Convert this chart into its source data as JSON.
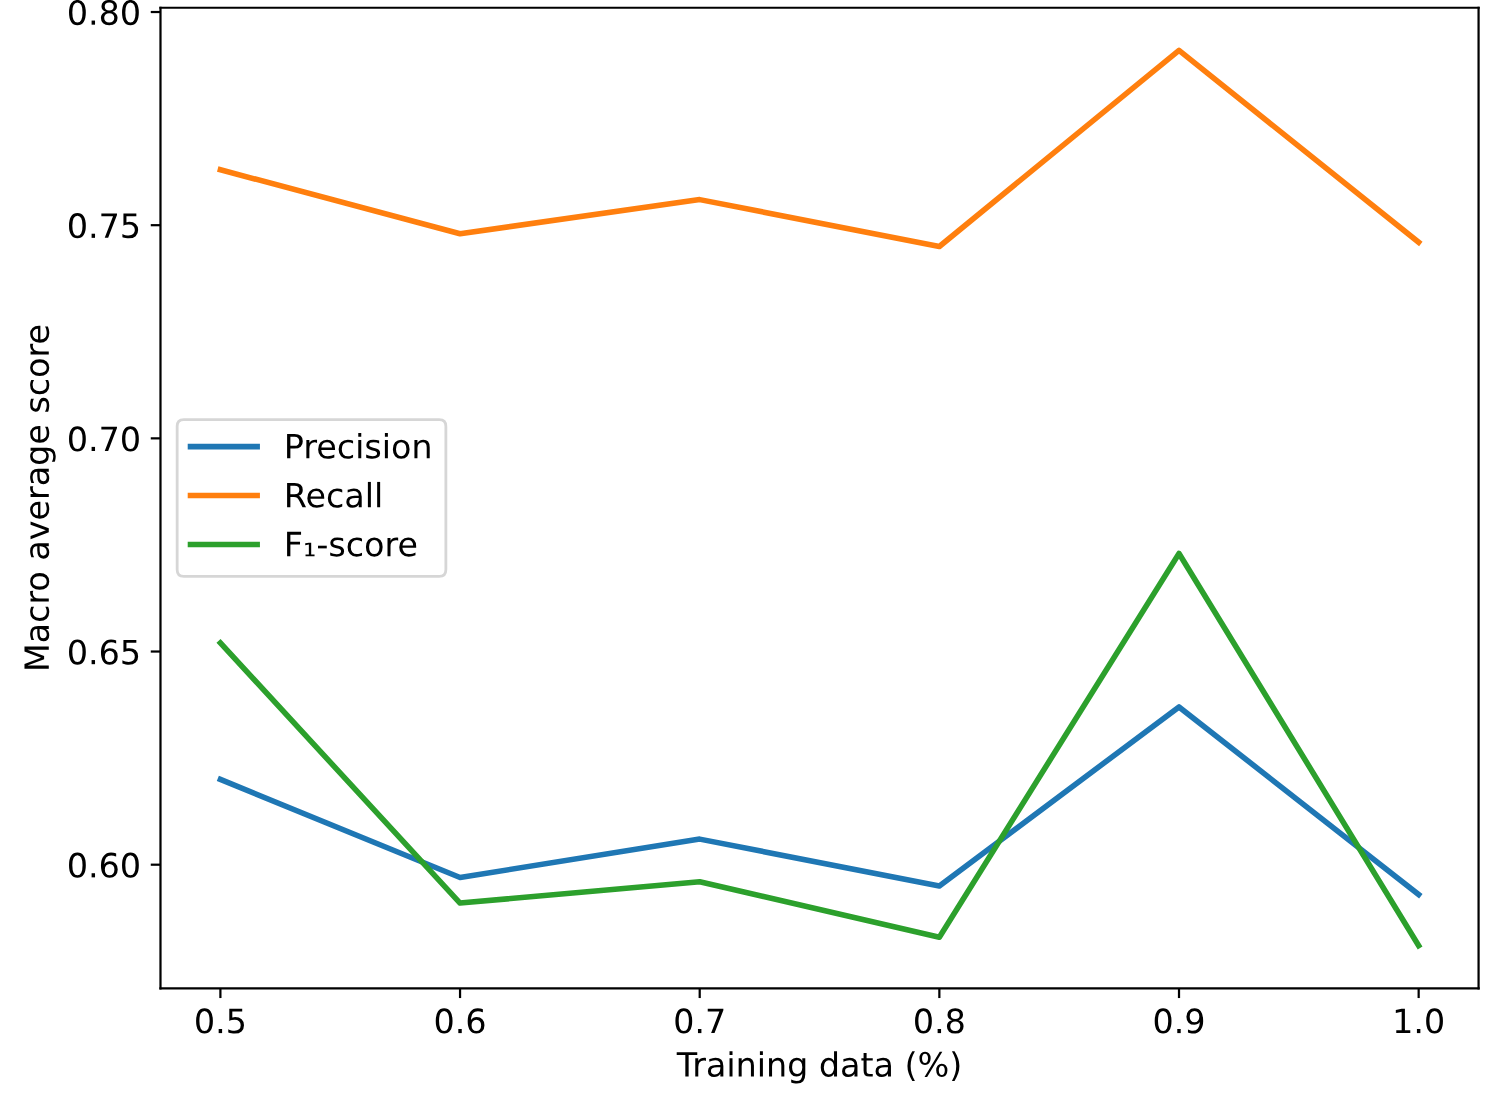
{
  "chart_data": {
    "type": "line",
    "xlabel": "Training data (%)",
    "ylabel": "Macro average score",
    "x": [
      0.5,
      0.6,
      0.7,
      0.8,
      0.9,
      1.0
    ],
    "series": [
      {
        "name": "Precision",
        "color": "#1f77b4",
        "values": [
          0.62,
          0.597,
          0.606,
          0.595,
          0.637,
          0.593
        ]
      },
      {
        "name": "Recall",
        "color": "#ff7f0e",
        "values": [
          0.763,
          0.748,
          0.756,
          0.745,
          0.791,
          0.746
        ]
      },
      {
        "name": "F₁-score",
        "color": "#2ca02c",
        "values": [
          0.652,
          0.591,
          0.596,
          0.583,
          0.673,
          0.581
        ]
      }
    ],
    "xlim": [
      0.475,
      1.025
    ],
    "xticks": [
      0.5,
      0.6,
      0.7,
      0.8,
      0.9,
      {
        "value": 1.0,
        "label": "1.0"
      }
    ],
    "ylim": [
      0.571,
      0.801
    ],
    "yticks": [
      {
        "value": 0.6,
        "label": "0.60"
      },
      0.65,
      {
        "value": 0.7,
        "label": "0.70"
      },
      0.75,
      {
        "value": 0.8,
        "label": "0.80"
      }
    ],
    "grid": false,
    "legend": "center left",
    "marker": "none",
    "line_style": "solid"
  }
}
